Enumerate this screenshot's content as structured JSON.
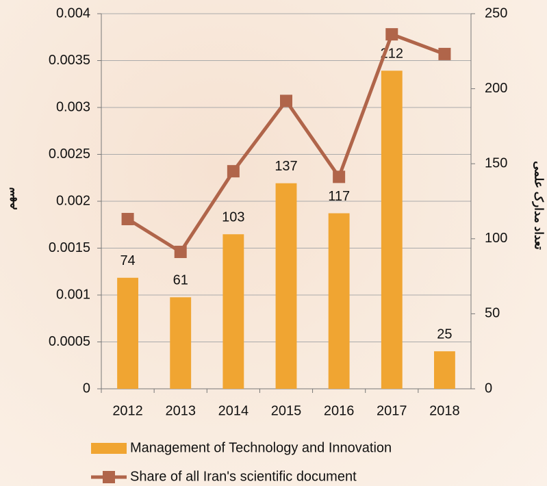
{
  "chart_data": {
    "type": "bar",
    "categories": [
      "2012",
      "2013",
      "2014",
      "2015",
      "2016",
      "2017",
      "2018"
    ],
    "series": [
      {
        "name": "Management of Technology and Innovation",
        "type": "bar",
        "axis": "y2",
        "color": "#f0a532",
        "values": [
          74,
          61,
          103,
          137,
          117,
          212,
          25
        ]
      },
      {
        "name": "Share of all Iran's scientific document",
        "type": "line",
        "axis": "y",
        "color": "#b0654a",
        "values": [
          0.00181,
          0.00146,
          0.00232,
          0.00307,
          0.00226,
          0.00378,
          0.00357
        ]
      }
    ],
    "ylabel": "سهم",
    "y2label": "تعداد مدارک علمی",
    "ylim": [
      0,
      0.004
    ],
    "yticks": [
      0,
      0.0005,
      0.001,
      0.0015,
      0.002,
      0.0025,
      0.003,
      0.0035,
      0.004
    ],
    "y2lim": [
      0,
      250
    ],
    "y2ticks": [
      0,
      50,
      100,
      150,
      200,
      250
    ],
    "grid": true,
    "legend": "bottom"
  }
}
